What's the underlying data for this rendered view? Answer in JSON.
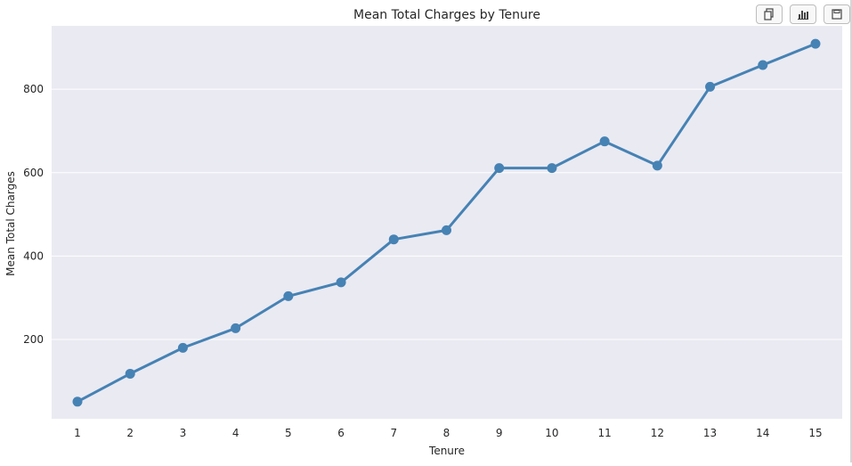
{
  "toolbar": {
    "buttons": [
      {
        "icon": "copy-icon"
      },
      {
        "icon": "bar-chart-icon"
      },
      {
        "icon": "save-icon"
      }
    ]
  },
  "colors": {
    "line": "#4682b4",
    "plot_background": "#eaeaf2",
    "grid": "#ffffff"
  },
  "chart_data": {
    "type": "line",
    "title": "Mean Total Charges by Tenure",
    "xlabel": "Tenure",
    "ylabel": "Mean Total Charges",
    "categories": [
      "1",
      "2",
      "3",
      "4",
      "5",
      "6",
      "7",
      "8",
      "9",
      "10",
      "11",
      "12",
      "13",
      "14",
      "15"
    ],
    "values": [
      51,
      118,
      180,
      227,
      304,
      337,
      440,
      462,
      611,
      611,
      675,
      617,
      806,
      858,
      909
    ],
    "ylim": [
      10,
      952
    ],
    "yticks": [
      200,
      400,
      600,
      800
    ],
    "grid": true,
    "markers": true
  }
}
